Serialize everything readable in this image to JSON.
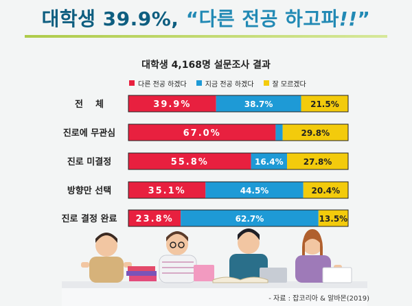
{
  "headline": {
    "main": "대학생 39.9%,",
    "quote_open": "“다른 전공 하고파",
    "quote_em": "!!",
    "quote_close": "”"
  },
  "colors": {
    "series": [
      "#e8203f",
      "#1e9ad6",
      "#f3cb0c"
    ],
    "title_primary": "#0e5e80",
    "title_accent": "#2189b4",
    "rule": "#aecb4a"
  },
  "chart_data": {
    "type": "bar",
    "stacked": true,
    "orientation": "horizontal",
    "title": "대학생 4,168명 설문조사 결과",
    "categories": [
      "전    체",
      "진로에 무관심",
      "진로 미결정",
      "방향만 선택",
      "진로 결정 완료"
    ],
    "series": [
      {
        "name": "다른 전공 하겠다",
        "values": [
          39.9,
          67.0,
          55.8,
          35.1,
          23.8
        ],
        "labels": [
          "39.9%",
          "67.0%",
          "55.8%",
          "35.1%",
          "23.8%"
        ]
      },
      {
        "name": "지금 전공 하겠다",
        "values": [
          38.7,
          3.2,
          16.4,
          44.5,
          62.7
        ],
        "labels": [
          "38.7%",
          "",
          "16.4%",
          "44.5%",
          "62.7%"
        ]
      },
      {
        "name": "잘 모르겠다",
        "values": [
          21.5,
          29.8,
          27.8,
          20.4,
          13.5
        ],
        "labels": [
          "21.5%",
          "29.8%",
          "27.8%",
          "20.4%",
          "13.5%"
        ]
      }
    ],
    "xlim": [
      0,
      100
    ],
    "legend_position": "top",
    "grid": false
  },
  "source": "- 자료 : 잡코리아 & 알바몬(2019)"
}
